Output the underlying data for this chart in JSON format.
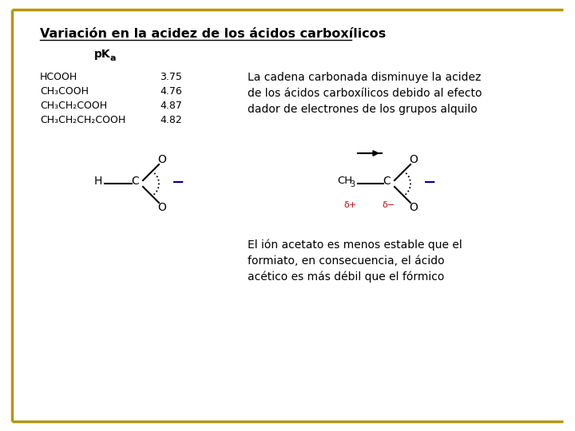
{
  "title": "Variación en la acidez de los ácidos carboxílicos",
  "background_color": "#ffffff",
  "border_color": "#b8960c",
  "pka_header": "pK",
  "pka_subscript": "a",
  "table_data": [
    {
      "formula": "HCOOH",
      "pka": "3.75"
    },
    {
      "formula": "CH₃COOH",
      "pka": "4.76"
    },
    {
      "formula": "CH₃CH₂COOH",
      "pka": "4.87"
    },
    {
      "formula": "CH₃CH₂CH₂COOH",
      "pka": "4.82"
    }
  ],
  "right_text_line1": "La cadena carbonada disminuye la acidez",
  "right_text_line2": "de los ácidos carboxílicos debido al efecto",
  "right_text_line3": "dador de electrones de los grupos alquilo",
  "bottom_text_line1": "El ión acetato es menos estable que el",
  "bottom_text_line2": "formiato, en consecuencia, el ácido",
  "bottom_text_line3": "acético es más débil que el fórmico",
  "text_color": "#000000",
  "red_color": "#cc0000",
  "blue_color": "#00008b"
}
